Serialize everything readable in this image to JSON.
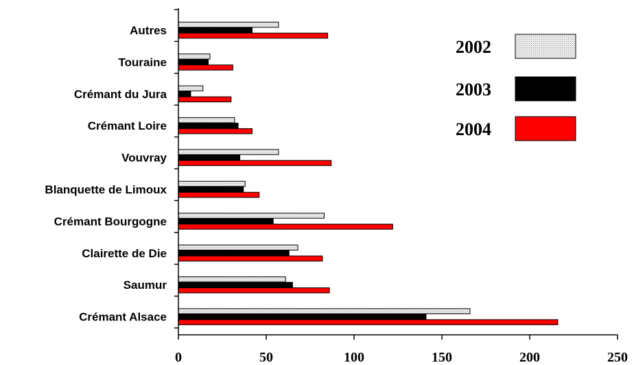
{
  "chart_data": {
    "type": "bar",
    "orientation": "horizontal",
    "title": "",
    "xlabel": "",
    "ylabel": "",
    "categories": [
      "Autres",
      "Touraine",
      "Crémant du Jura",
      "Crémant Loire",
      "Vouvray",
      "Blanquette de Limoux",
      "Crémant Bourgogne",
      "Clairette de Die",
      "Saumur",
      "Crémant Alsace"
    ],
    "series": [
      {
        "name": "2002",
        "color": "#e2e2e2",
        "values": [
          57,
          18,
          14,
          32,
          57,
          38,
          83,
          68,
          61,
          166
        ]
      },
      {
        "name": "2003",
        "color": "#000000",
        "values": [
          42,
          17,
          7,
          34,
          35,
          37,
          54,
          63,
          65,
          141
        ]
      },
      {
        "name": "2004",
        "color": "#ff0000",
        "values": [
          85,
          31,
          30,
          42,
          87,
          46,
          122,
          82,
          86,
          216
        ]
      }
    ],
    "xlim": [
      0,
      250
    ],
    "xticks": [
      "0",
      "50",
      "100",
      "150",
      "200",
      "250"
    ],
    "grid": false,
    "legend_position": "top-right"
  }
}
